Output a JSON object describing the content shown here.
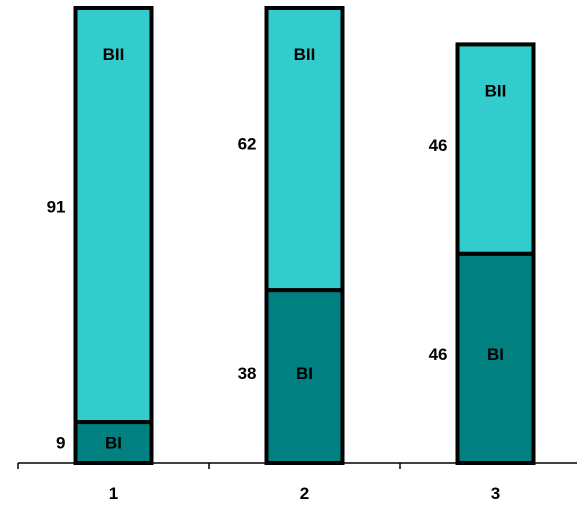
{
  "chart_data": {
    "type": "bar",
    "stacked": true,
    "categories": [
      "1",
      "2",
      "3"
    ],
    "series": [
      {
        "name": "BI",
        "values": [
          9,
          38,
          46
        ],
        "color": "#008080"
      },
      {
        "name": "BII",
        "values": [
          91,
          62,
          46
        ],
        "color": "#33cccc"
      }
    ],
    "ylim": [
      0,
      100
    ],
    "grid": false,
    "legend": "none",
    "title": "",
    "xlabel": "",
    "ylabel": ""
  }
}
